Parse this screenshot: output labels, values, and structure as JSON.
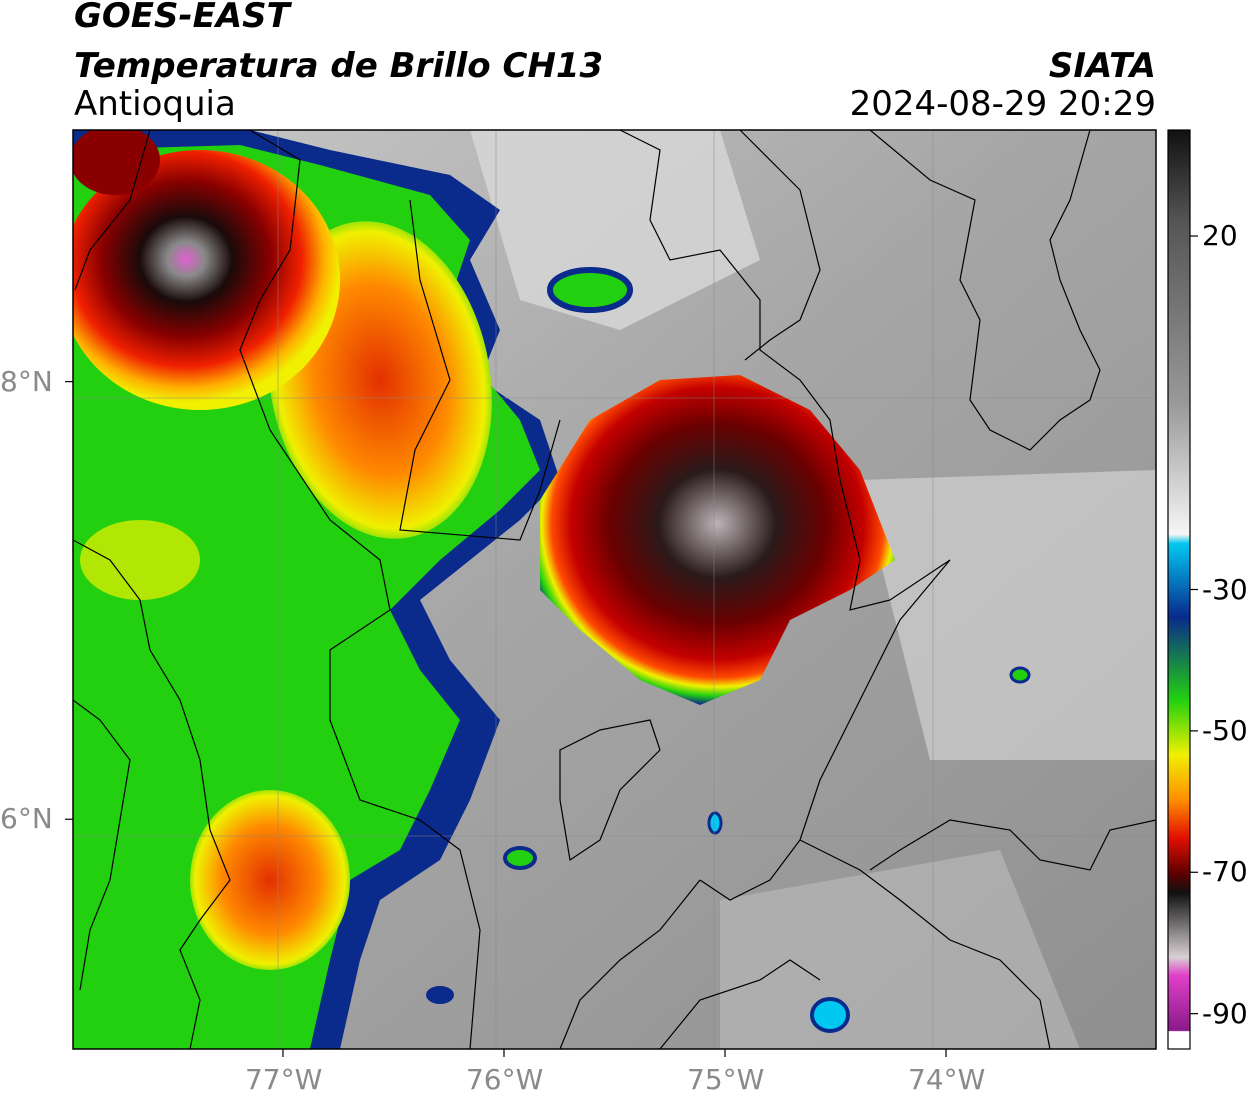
{
  "header": {
    "satellite": "GOES-EAST",
    "product": "Temperatura de Brillo CH13",
    "region": "Antioquia",
    "agency": "SIATA",
    "timestamp": "2024-08-29 20:29"
  },
  "map": {
    "lat_labels": [
      "8°N",
      "6°N"
    ],
    "lon_labels": [
      "77°W",
      "76°W",
      "75°W",
      "74°W"
    ],
    "lat_values": [
      8,
      6
    ],
    "lon_values": [
      -77,
      -76,
      -75,
      -74
    ],
    "extent": {
      "lon_min": -77.95,
      "lon_max": -73.05,
      "lat_min": 4.95,
      "lat_max": 9.15
    }
  },
  "colorbar": {
    "labels": [
      "20",
      "-30",
      "-50",
      "-70",
      "-90"
    ],
    "values": [
      20,
      -30,
      -50,
      -70,
      -90
    ],
    "range": [
      -95,
      35
    ],
    "colors": {
      "black": "#111111",
      "white": "#f6f6f6",
      "cyan": "#00c8f0",
      "blue": "#0a2a8c",
      "green": "#22d010",
      "yellow": "#f0f000",
      "orange": "#ff8a00",
      "red": "#e21000",
      "dark_red": "#5a0000",
      "magenta": "#e040c8",
      "purple": "#8a1a8a"
    }
  },
  "icons": [
    "coastline-and-borders-overlay"
  ]
}
